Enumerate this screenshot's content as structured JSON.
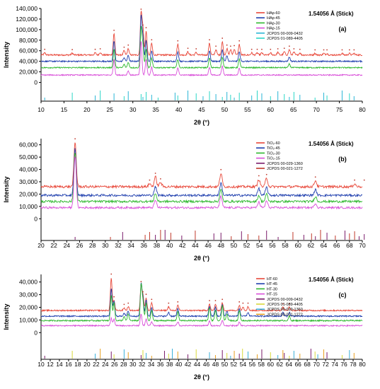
{
  "figure": {
    "ylabel": "Intensity",
    "xlabel": "2θ (°)",
    "note": "1.54056 Å (Stick)"
  },
  "chart_data": [
    {
      "type": "line",
      "label": "(a)",
      "xlabel": "2θ (°)",
      "ylabel": "Intensity",
      "xlim": [
        10,
        80
      ],
      "ylim": [
        -10000,
        140000
      ],
      "x_ticks": [
        10,
        15,
        20,
        25,
        30,
        35,
        40,
        45,
        50,
        55,
        60,
        65,
        70,
        75,
        80
      ],
      "y_ticks": [
        0,
        20000,
        40000,
        60000,
        80000,
        100000,
        120000,
        140000
      ],
      "y_tick_labels": [
        "0",
        "20,000",
        "40,000",
        "60,000",
        "80,000",
        "100,000",
        "120,000",
        "140,000"
      ],
      "legend_position": "top-right",
      "series": [
        {
          "name": "HAp-60",
          "color": "#e8483a",
          "baseline": 52000,
          "noise": 1400,
          "peaks": [
            [
              10.8,
              4000
            ],
            [
              16.8,
              3500
            ],
            [
              21.8,
              4000
            ],
            [
              22.9,
              5000
            ],
            [
              25.9,
              40000
            ],
            [
              28.1,
              8000
            ],
            [
              29.0,
              12000
            ],
            [
              31.8,
              80000
            ],
            [
              32.2,
              50000
            ],
            [
              32.9,
              45000
            ],
            [
              34.1,
              22000
            ],
            [
              39.8,
              20000
            ],
            [
              42.0,
              6000
            ],
            [
              43.8,
              5000
            ],
            [
              46.7,
              22000
            ],
            [
              48.1,
              10000
            ],
            [
              49.5,
              25000
            ],
            [
              50.5,
              12000
            ],
            [
              51.3,
              10000
            ],
            [
              52.1,
              11000
            ],
            [
              53.2,
              20000
            ],
            [
              55.9,
              4000
            ],
            [
              57.1,
              4000
            ],
            [
              58.1,
              4000
            ],
            [
              60.0,
              4000
            ],
            [
              61.6,
              5000
            ],
            [
              63.0,
              6000
            ],
            [
              64.1,
              10000
            ],
            [
              65.1,
              5000
            ],
            [
              66.4,
              4000
            ],
            [
              69.7,
              3000
            ],
            [
              71.6,
              3000
            ],
            [
              72.3,
              3000
            ],
            [
              75.6,
              3000
            ],
            [
              77.2,
              3000
            ],
            [
              78.2,
              3000
            ]
          ]
        },
        {
          "name": "HAp-45",
          "color": "#1f3fae",
          "baseline": 40000,
          "noise": 1200,
          "peaks": [
            [
              25.9,
              38000
            ],
            [
              28.1,
              7000
            ],
            [
              29.0,
              11000
            ],
            [
              31.8,
              85000
            ],
            [
              32.2,
              45000
            ],
            [
              32.9,
              40000
            ],
            [
              34.1,
              20000
            ],
            [
              39.8,
              18000
            ],
            [
              46.7,
              20000
            ],
            [
              49.5,
              22000
            ],
            [
              50.5,
              10000
            ],
            [
              53.2,
              18000
            ],
            [
              64.1,
              8000
            ]
          ]
        },
        {
          "name": "HAp-30",
          "color": "#2eb82e",
          "baseline": 28000,
          "noise": 1100,
          "peaks": [
            [
              25.9,
              35000
            ],
            [
              28.1,
              6000
            ],
            [
              29.0,
              10000
            ],
            [
              31.8,
              75000
            ],
            [
              32.2,
              40000
            ],
            [
              32.9,
              35000
            ],
            [
              34.1,
              18000
            ],
            [
              39.8,
              16000
            ],
            [
              46.7,
              18000
            ],
            [
              49.5,
              20000
            ],
            [
              53.2,
              16000
            ],
            [
              64.1,
              7000
            ]
          ]
        },
        {
          "name": "HAp-15",
          "color": "#d94fd9",
          "baseline": 14000,
          "noise": 1000,
          "peaks": [
            [
              25.9,
              30000
            ],
            [
              29.0,
              8000
            ],
            [
              31.8,
              65000
            ],
            [
              32.9,
              30000
            ],
            [
              34.1,
              15000
            ],
            [
              39.8,
              14000
            ],
            [
              46.7,
              15000
            ],
            [
              49.5,
              17000
            ],
            [
              53.2,
              13000
            ]
          ]
        },
        {
          "name": "JCPDS 00-009-0432",
          "color": "#2bb6d6",
          "kind": "stick"
        },
        {
          "name": "JCPDS 01-089-4405",
          "color": "#2bd6c6",
          "kind": "stick"
        }
      ],
      "sticks": [
        10.8,
        16.8,
        21.8,
        22.9,
        25.9,
        28.1,
        29.0,
        31.8,
        32.2,
        32.9,
        34.1,
        35.5,
        39.2,
        39.8,
        42.0,
        43.8,
        45.3,
        46.7,
        48.1,
        49.5,
        50.5,
        51.3,
        52.1,
        53.2,
        55.9,
        57.1,
        58.1,
        60.0,
        61.6,
        63.0,
        64.1,
        65.1,
        66.4,
        69.7,
        71.6,
        72.3,
        75.6,
        77.2,
        78.2
      ]
    },
    {
      "type": "line",
      "label": "(b)",
      "xlabel": "2θ (°)",
      "ylabel": "Intensity",
      "xlim": [
        20,
        70
      ],
      "ylim": [
        -5000,
        65000
      ],
      "x_ticks": [
        20,
        22,
        24,
        26,
        28,
        30,
        32,
        34,
        36,
        38,
        40,
        42,
        44,
        46,
        48,
        50,
        52,
        54,
        56,
        58,
        60,
        62,
        64,
        66,
        68,
        70
      ],
      "y_ticks": [
        0,
        10000,
        20000,
        30000,
        40000,
        50000,
        60000
      ],
      "y_tick_labels": [
        "0",
        "10,000",
        "20,000",
        "30,000",
        "40,000",
        "50,000",
        "60,000"
      ],
      "legend_position": "top-right",
      "series": [
        {
          "name": "TiO₂-60",
          "color": "#e8483a",
          "baseline": 26000,
          "noise": 1000,
          "peaks": [
            [
              25.3,
              36000
            ],
            [
              36.9,
              2500
            ],
            [
              37.8,
              8000
            ],
            [
              38.6,
              3500
            ],
            [
              48.0,
              11000
            ],
            [
              53.9,
              6000
            ],
            [
              55.1,
              7000
            ],
            [
              62.7,
              5000
            ],
            [
              68.8,
              2500
            ],
            [
              70.3,
              2500
            ]
          ]
        },
        {
          "name": "TiO₂-45",
          "color": "#1f3fae",
          "baseline": 19000,
          "noise": 900,
          "peaks": [
            [
              25.3,
              38000
            ],
            [
              37.8,
              7000
            ],
            [
              48.0,
              10000
            ],
            [
              53.9,
              5500
            ],
            [
              55.1,
              6500
            ],
            [
              62.7,
              4500
            ]
          ]
        },
        {
          "name": "TiO₂-30",
          "color": "#2eb82e",
          "baseline": 14000,
          "noise": 900,
          "peaks": [
            [
              25.3,
              40000
            ],
            [
              37.8,
              6500
            ],
            [
              48.0,
              9500
            ],
            [
              53.9,
              5000
            ],
            [
              55.1,
              6000
            ],
            [
              62.7,
              4000
            ]
          ]
        },
        {
          "name": "TiO₂-15",
          "color": "#d94fd9",
          "baseline": 9000,
          "noise": 800,
          "peaks": [
            [
              25.3,
              42000
            ],
            [
              37.8,
              6000
            ],
            [
              48.0,
              9000
            ],
            [
              53.9,
              4500
            ],
            [
              55.1,
              5500
            ],
            [
              62.7,
              3500
            ]
          ]
        },
        {
          "name": "JCPDS 00-029-1360",
          "color": "#7a1a6a",
          "kind": "stick"
        },
        {
          "name": "JCPDS 00-021-1272",
          "color": "#c0392b",
          "kind": "stick"
        }
      ],
      "sticks": [
        25.3,
        36.9,
        37.8,
        38.6,
        48.0,
        53.9,
        55.1,
        62.1,
        62.7,
        68.8,
        70.3,
        30.8,
        32.7,
        36.2,
        39.3,
        40.2,
        41.9,
        44.0,
        46.9,
        49.6,
        51.2,
        52.2,
        56.9,
        59.2,
        60.9,
        63.5,
        64.5,
        65.8,
        67.3,
        68.0,
        69.5
      ]
    },
    {
      "type": "line",
      "label": "(c)",
      "xlabel": "2θ (°)",
      "ylabel": "Intensity",
      "xlim": [
        10,
        80
      ],
      "ylim": [
        -6000,
        46000
      ],
      "x_ticks": [
        10,
        12,
        14,
        16,
        18,
        20,
        22,
        24,
        26,
        28,
        30,
        32,
        34,
        36,
        38,
        40,
        42,
        44,
        46,
        48,
        50,
        52,
        54,
        56,
        58,
        60,
        62,
        64,
        66,
        68,
        70,
        72,
        74,
        76,
        78,
        80
      ],
      "y_ticks": [
        0,
        10000,
        20000,
        30000,
        40000
      ],
      "y_tick_labels": [
        "0",
        "10,000",
        "20,000",
        "30,000",
        "40,000"
      ],
      "legend_position": "top-right",
      "series": [
        {
          "name": "HT-60",
          "color": "#e8483a",
          "baseline": 17500,
          "noise": 500,
          "peaks": [
            [
              25.3,
              26000
            ],
            [
              25.9,
              8000
            ],
            [
              28.1,
              2000
            ],
            [
              29.0,
              3000
            ],
            [
              31.8,
              20000
            ],
            [
              32.2,
              12000
            ],
            [
              32.9,
              10000
            ],
            [
              34.1,
              6000
            ],
            [
              37.8,
              3000
            ],
            [
              39.8,
              4000
            ],
            [
              46.7,
              5000
            ],
            [
              48.0,
              5000
            ],
            [
              49.5,
              6000
            ],
            [
              53.2,
              4000
            ],
            [
              54.0,
              3000
            ],
            [
              55.1,
              3000
            ],
            [
              62.7,
              2500
            ],
            [
              64.1,
              2500
            ]
          ]
        },
        {
          "name": "HT-45",
          "color": "#1f3fae",
          "baseline": 13000,
          "noise": 500,
          "peaks": [
            [
              25.3,
              22000
            ],
            [
              25.9,
              12000
            ],
            [
              28.1,
              2500
            ],
            [
              29.0,
              4000
            ],
            [
              31.8,
              25000
            ],
            [
              32.2,
              14000
            ],
            [
              32.9,
              13000
            ],
            [
              34.1,
              7000
            ],
            [
              37.8,
              3000
            ],
            [
              39.8,
              6000
            ],
            [
              46.7,
              8000
            ],
            [
              48.0,
              7000
            ],
            [
              49.5,
              9000
            ],
            [
              50.5,
              4000
            ],
            [
              53.2,
              6000
            ],
            [
              55.1,
              3000
            ],
            [
              62.7,
              3000
            ],
            [
              64.1,
              3000
            ]
          ]
        },
        {
          "name": "HT-30",
          "color": "#2eb82e",
          "baseline": 9500,
          "noise": 500,
          "peaks": [
            [
              25.3,
              20000
            ],
            [
              25.9,
              14000
            ],
            [
              28.1,
              3000
            ],
            [
              29.0,
              5000
            ],
            [
              31.8,
              28000
            ],
            [
              32.2,
              15000
            ],
            [
              32.9,
              14000
            ],
            [
              34.1,
              8000
            ],
            [
              39.8,
              7000
            ],
            [
              46.7,
              10000
            ],
            [
              48.0,
              8000
            ],
            [
              49.5,
              12000
            ],
            [
              50.5,
              5000
            ],
            [
              53.2,
              8000
            ],
            [
              64.1,
              3500
            ]
          ]
        },
        {
          "name": "HT-15",
          "color": "#d94fd9",
          "baseline": 5500,
          "noise": 450,
          "peaks": [
            [
              25.3,
              6000
            ],
            [
              25.9,
              5000
            ],
            [
              31.8,
              9000
            ],
            [
              32.9,
              5000
            ],
            [
              34.1,
              3000
            ],
            [
              39.8,
              3000
            ],
            [
              46.7,
              3500
            ],
            [
              49.5,
              4000
            ],
            [
              53.2,
              3000
            ]
          ]
        },
        {
          "name": "JCPDS 00-009-0432",
          "color": "#7a1a6a",
          "kind": "stick"
        },
        {
          "name": "JCPDS 01-089-4405",
          "color": "#d9d93a",
          "kind": "stick"
        },
        {
          "name": "JCPDS 00-029-1360",
          "color": "#3ab0d9",
          "kind": "stick"
        },
        {
          "name": "JCPDS 00-021-1272",
          "color": "#e8a020",
          "kind": "stick"
        }
      ],
      "sticks": [
        10.8,
        16.8,
        21.8,
        22.9,
        25.3,
        25.9,
        28.1,
        29.0,
        31.8,
        32.2,
        32.9,
        34.1,
        36.9,
        37.8,
        38.6,
        39.8,
        42.0,
        43.8,
        46.7,
        48.0,
        49.5,
        50.5,
        51.3,
        52.1,
        53.2,
        53.9,
        55.1,
        57.1,
        58.1,
        60.0,
        61.6,
        62.7,
        63.0,
        64.1,
        65.1,
        66.4,
        68.8,
        69.7,
        70.3,
        71.6,
        72.3,
        75.6,
        77.2,
        78.2
      ]
    }
  ]
}
